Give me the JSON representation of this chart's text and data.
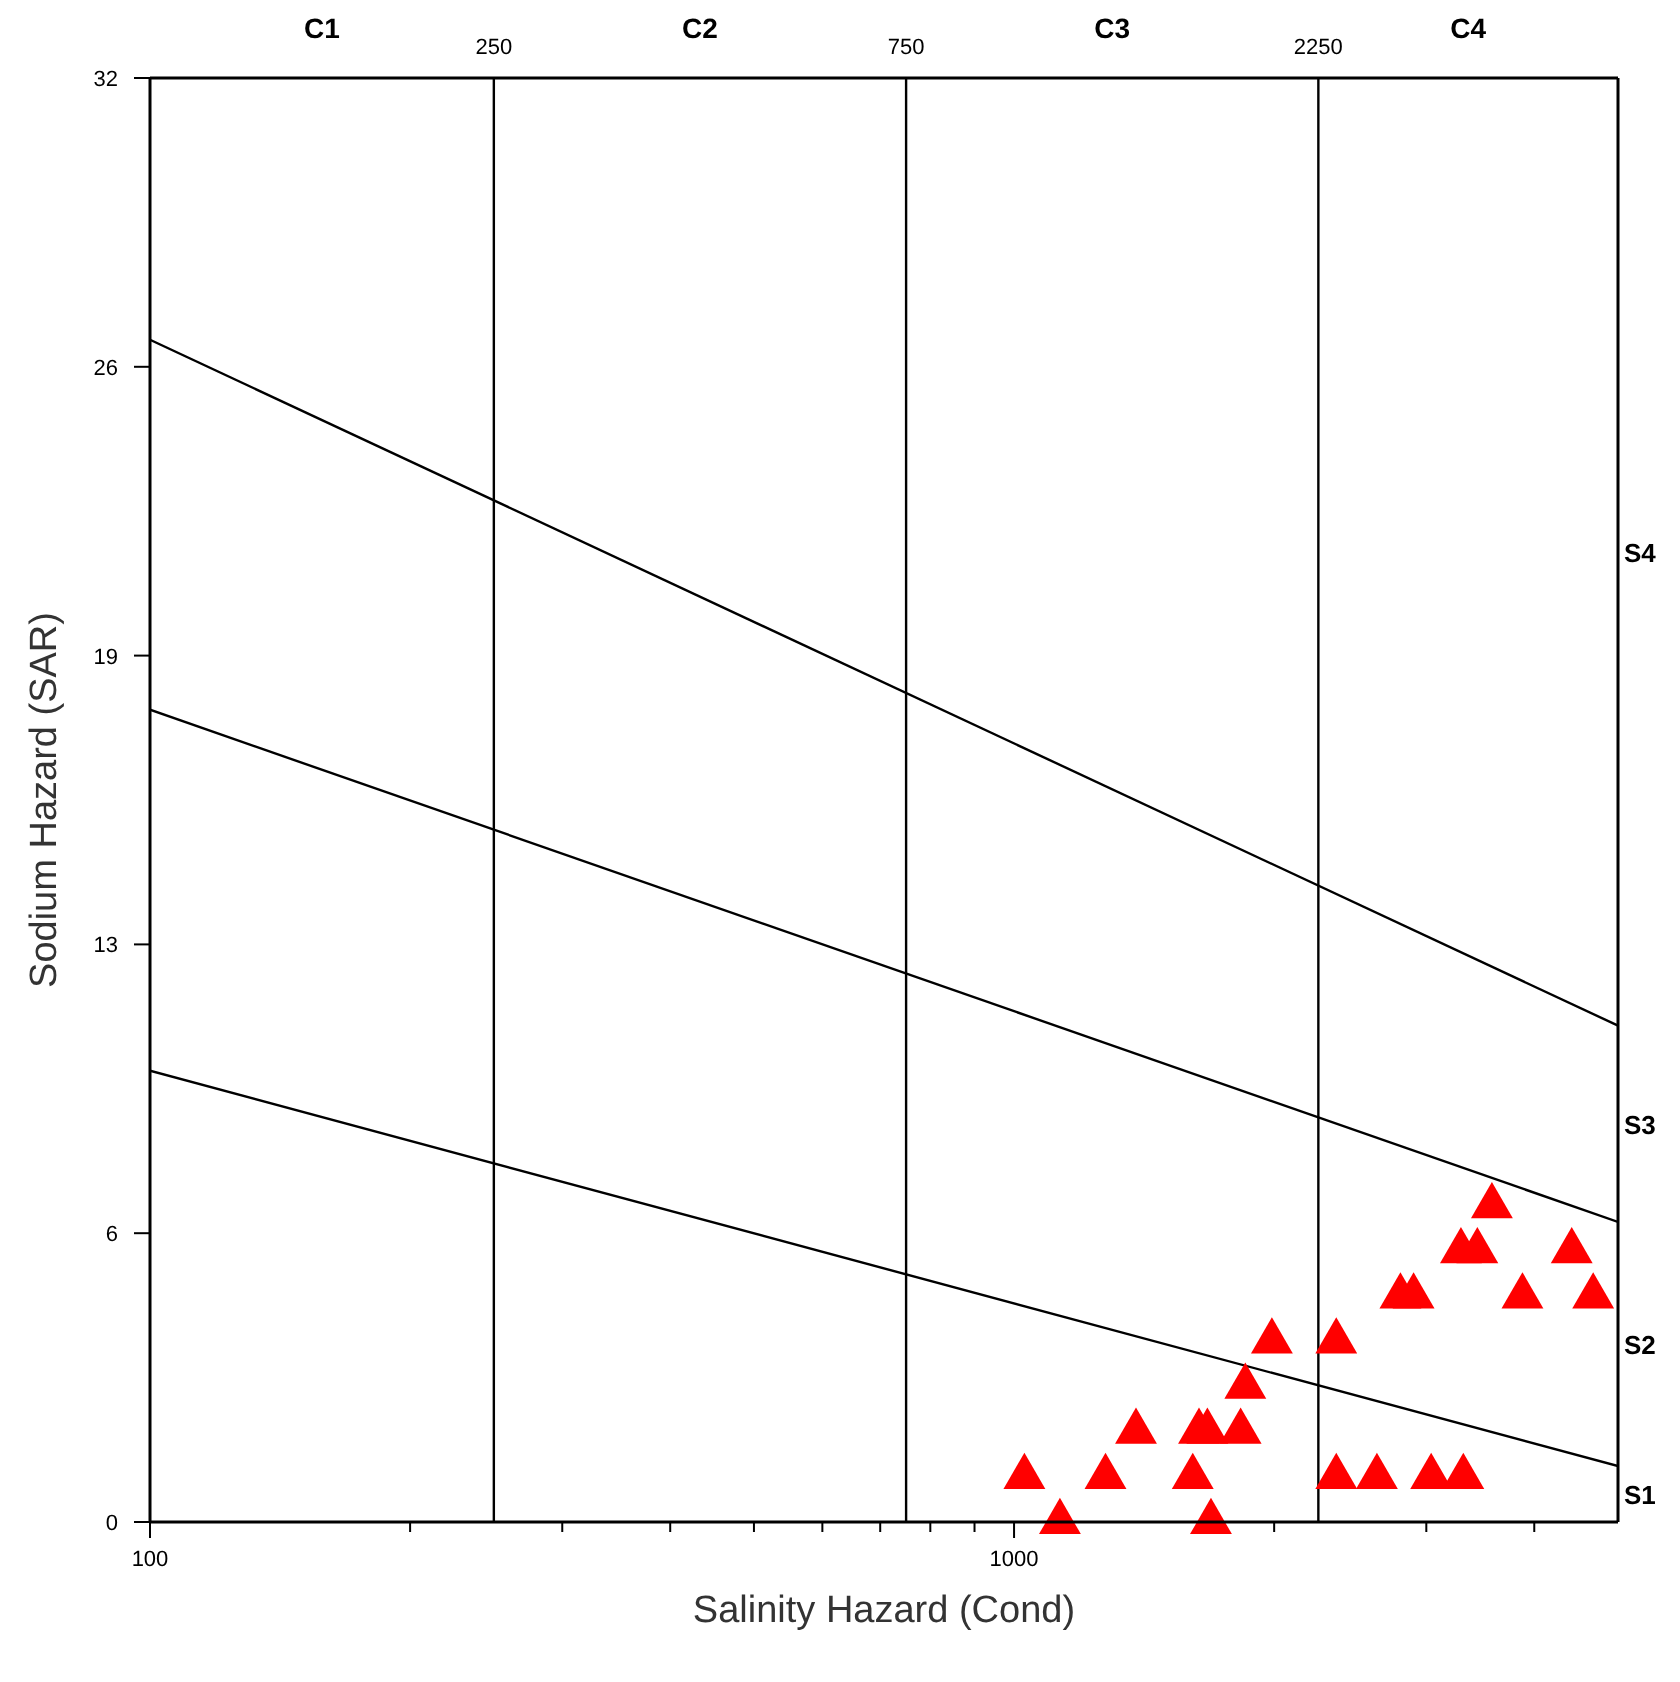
{
  "chart_data": {
    "type": "scatter",
    "xlabel": "Salinity Hazard (Cond)",
    "ylabel": "Sodium Hazard (SAR)",
    "log": "x",
    "xlim": [
      100,
      5000
    ],
    "ylim": [
      0,
      32
    ],
    "xticks": [
      100,
      {
        "value": 200,
        "label": null
      },
      {
        "value": 300,
        "label": null
      },
      {
        "value": 400,
        "label": null
      },
      {
        "value": 500,
        "label": null
      },
      {
        "value": 600,
        "label": null
      },
      {
        "value": 700,
        "label": null
      },
      {
        "value": 800,
        "label": null
      },
      {
        "value": 900,
        "label": null
      },
      1000,
      {
        "value": 2000,
        "label": null
      },
      {
        "value": 3000,
        "label": null
      },
      {
        "value": 4000,
        "label": null
      }
    ],
    "yticks": [
      0,
      {
        "value": 6.4,
        "label": "6"
      },
      {
        "value": 12.8,
        "label": "13"
      },
      {
        "value": 19.2,
        "label": "19"
      },
      {
        "value": 25.6,
        "label": "26"
      },
      32
    ],
    "grid": false,
    "ref_lines": [
      {
        "axis": "x",
        "value": 250,
        "label": "250"
      },
      {
        "axis": "x",
        "value": 750,
        "label": "750"
      },
      {
        "axis": "x",
        "value": 2250,
        "label": "2250"
      }
    ],
    "annotations": [
      "C1",
      "C2",
      "C3",
      "C4",
      "S1",
      "S2",
      "S3",
      "S4"
    ],
    "series": [
      {
        "type": "line",
        "color": "#000000",
        "x": [
          100,
          5000
        ],
        "values": [
          10,
          1.24
        ]
      },
      {
        "type": "line",
        "color": "#000000",
        "x": [
          100,
          5000
        ],
        "values": [
          18,
          6.65
        ]
      },
      {
        "type": "line",
        "color": "#000000",
        "x": [
          100,
          5000
        ],
        "values": [
          26.2,
          11
        ]
      },
      {
        "color": "#ff0000",
        "marker": "triangle",
        "x": [
          1028,
          1130,
          1276,
          1384,
          1610,
          1637,
          1674,
          1690,
          1829,
          1852,
          1988,
          2360,
          2360,
          2630,
          3039,
          3311,
          2800,
          2900,
          3290,
          3437,
          3573,
          3876,
          4420,
          4680
        ],
        "values": [
          1,
          0,
          1,
          2,
          1,
          2,
          2,
          0,
          2,
          3,
          4,
          4,
          1,
          1,
          1,
          1,
          5,
          5,
          6,
          6,
          7,
          5,
          6,
          5
        ]
      }
    ]
  }
}
